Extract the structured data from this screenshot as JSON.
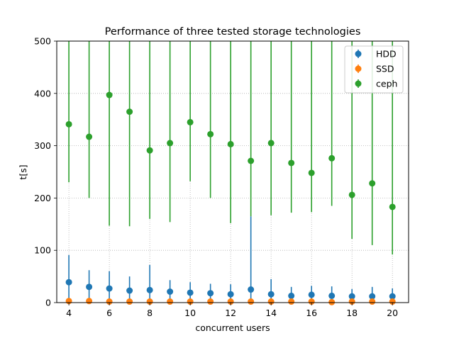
{
  "chart_data": {
    "type": "scatter",
    "title": "Performance of three tested storage technologies",
    "xlabel": "concurrent users",
    "ylabel": "t[s]",
    "xlim": [
      3.4,
      20.8
    ],
    "ylim": [
      0,
      500
    ],
    "xticks": [
      4,
      6,
      8,
      10,
      12,
      14,
      16,
      18,
      20
    ],
    "yticks": [
      0,
      100,
      200,
      300,
      400,
      500
    ],
    "grid": true,
    "legend_position": "top-right",
    "series": [
      {
        "name": "HDD",
        "color": "#1f77b4",
        "points": [
          {
            "x": 4,
            "y": 39,
            "lo": 0,
            "hi": 91
          },
          {
            "x": 5,
            "y": 30,
            "lo": 0,
            "hi": 62
          },
          {
            "x": 6,
            "y": 27,
            "lo": 0,
            "hi": 60
          },
          {
            "x": 7,
            "y": 23,
            "lo": 0,
            "hi": 50
          },
          {
            "x": 8,
            "y": 24,
            "lo": 0,
            "hi": 72
          },
          {
            "x": 9,
            "y": 21,
            "lo": 0,
            "hi": 43
          },
          {
            "x": 10,
            "y": 19,
            "lo": 0,
            "hi": 39
          },
          {
            "x": 11,
            "y": 18,
            "lo": 0,
            "hi": 36
          },
          {
            "x": 12,
            "y": 16,
            "lo": 0,
            "hi": 35
          },
          {
            "x": 13,
            "y": 25,
            "lo": 0,
            "hi": 165
          },
          {
            "x": 14,
            "y": 16,
            "lo": 0,
            "hi": 45
          },
          {
            "x": 15,
            "y": 13,
            "lo": 0,
            "hi": 30
          },
          {
            "x": 16,
            "y": 15,
            "lo": 0,
            "hi": 32
          },
          {
            "x": 17,
            "y": 13,
            "lo": 0,
            "hi": 31
          },
          {
            "x": 18,
            "y": 12,
            "lo": 0,
            "hi": 26
          },
          {
            "x": 19,
            "y": 12,
            "lo": 0,
            "hi": 30
          },
          {
            "x": 20,
            "y": 12,
            "lo": 0,
            "hi": 27
          }
        ]
      },
      {
        "name": "SSD",
        "color": "#ff7f0e",
        "points": [
          {
            "x": 4,
            "y": 3,
            "lo": 0,
            "hi": 6
          },
          {
            "x": 5,
            "y": 3,
            "lo": 0,
            "hi": 6
          },
          {
            "x": 6,
            "y": 2,
            "lo": 0,
            "hi": 5
          },
          {
            "x": 7,
            "y": 2,
            "lo": 0,
            "hi": 5
          },
          {
            "x": 8,
            "y": 2,
            "lo": 0,
            "hi": 5
          },
          {
            "x": 9,
            "y": 2,
            "lo": 0,
            "hi": 5
          },
          {
            "x": 10,
            "y": 2,
            "lo": 0,
            "hi": 5
          },
          {
            "x": 11,
            "y": 2,
            "lo": 0,
            "hi": 5
          },
          {
            "x": 12,
            "y": 2,
            "lo": 0,
            "hi": 5
          },
          {
            "x": 13,
            "y": 2,
            "lo": 0,
            "hi": 5
          },
          {
            "x": 14,
            "y": 2,
            "lo": 0,
            "hi": 5
          },
          {
            "x": 15,
            "y": 2,
            "lo": 0,
            "hi": 5
          },
          {
            "x": 16,
            "y": 2,
            "lo": 0,
            "hi": 5
          },
          {
            "x": 17,
            "y": 1,
            "lo": 0,
            "hi": 4
          },
          {
            "x": 18,
            "y": 2,
            "lo": 0,
            "hi": 5
          },
          {
            "x": 19,
            "y": 2,
            "lo": 0,
            "hi": 5
          },
          {
            "x": 20,
            "y": 2,
            "lo": 0,
            "hi": 5
          }
        ]
      },
      {
        "name": "ceph",
        "color": "#2ca02c",
        "points": [
          {
            "x": 4,
            "y": 341,
            "lo": 230,
            "hi": 500
          },
          {
            "x": 5,
            "y": 317,
            "lo": 200,
            "hi": 500
          },
          {
            "x": 6,
            "y": 397,
            "lo": 147,
            "hi": 500
          },
          {
            "x": 7,
            "y": 365,
            "lo": 146,
            "hi": 500
          },
          {
            "x": 8,
            "y": 291,
            "lo": 160,
            "hi": 500
          },
          {
            "x": 9,
            "y": 305,
            "lo": 154,
            "hi": 500
          },
          {
            "x": 10,
            "y": 345,
            "lo": 232,
            "hi": 500
          },
          {
            "x": 11,
            "y": 322,
            "lo": 200,
            "hi": 500
          },
          {
            "x": 12,
            "y": 303,
            "lo": 152,
            "hi": 500
          },
          {
            "x": 13,
            "y": 271,
            "lo": 165,
            "hi": 500
          },
          {
            "x": 14,
            "y": 305,
            "lo": 167,
            "hi": 500
          },
          {
            "x": 15,
            "y": 267,
            "lo": 172,
            "hi": 500
          },
          {
            "x": 16,
            "y": 248,
            "lo": 173,
            "hi": 500
          },
          {
            "x": 17,
            "y": 276,
            "lo": 185,
            "hi": 500
          },
          {
            "x": 18,
            "y": 206,
            "lo": 122,
            "hi": 500
          },
          {
            "x": 19,
            "y": 228,
            "lo": 110,
            "hi": 500
          },
          {
            "x": 20,
            "y": 183,
            "lo": 92,
            "hi": 500
          }
        ]
      }
    ]
  }
}
